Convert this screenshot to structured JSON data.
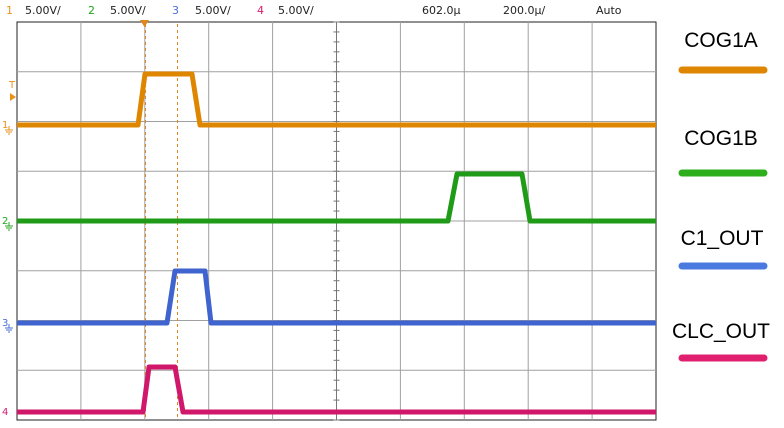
{
  "header": {
    "channels": [
      {
        "num": "1",
        "scale": "5.00V/",
        "color": "#e8921a"
      },
      {
        "num": "2",
        "scale": "5.00V/",
        "color": "#22a61d"
      },
      {
        "num": "3",
        "scale": "5.00V/",
        "color": "#4a6fd6"
      },
      {
        "num": "4",
        "scale": "5.00V/",
        "color": "#d8196e"
      }
    ],
    "timebase": "602.0µ",
    "timescale": "200.0µ/",
    "trigger_mode": "Auto"
  },
  "legend": [
    {
      "label": "COG1A",
      "color": "#df8600"
    },
    {
      "label": "COG1B",
      "color": "#2fae1c"
    },
    {
      "label": "C1_OUT",
      "color": "#4a79e0"
    },
    {
      "label": "CLC_OUT",
      "color": "#e0206f"
    }
  ],
  "markers": {
    "trigger_level": "T",
    "channel_refs": [
      "1",
      "2",
      "3",
      "4"
    ]
  },
  "colors": {
    "grid": "#a0a0a0",
    "cursor": "#e0861c",
    "ch1": "#df8600",
    "ch2": "#1f9b18",
    "ch3": "#3f63cf",
    "ch4": "#d0176a"
  }
}
